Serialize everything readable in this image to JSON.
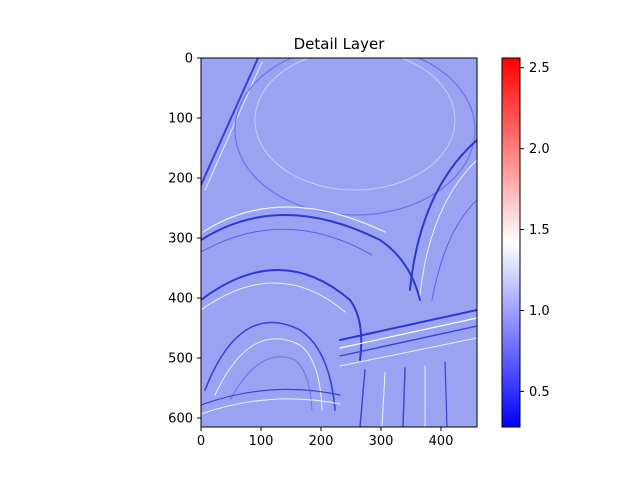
{
  "chart_data": {
    "type": "heatmap",
    "title": "Detail Layer",
    "xlabel": "",
    "ylabel": "",
    "x_ticks": [
      0,
      100,
      200,
      300,
      400
    ],
    "y_ticks": [
      0,
      100,
      200,
      300,
      400,
      500,
      600
    ],
    "xlim": [
      0,
      460
    ],
    "ylim": [
      615,
      0
    ],
    "grid": false,
    "colormap": "bwr",
    "colorbar": {
      "min": 0.28,
      "max": 2.56,
      "ticks": [
        0.5,
        1.0,
        1.5,
        2.0,
        2.5
      ],
      "tick_labels": [
        "0.5",
        "1.0",
        "1.5",
        "2.0",
        "2.5"
      ]
    },
    "image_description_values": {
      "background_level": 1.0
    }
  },
  "colors": {
    "cmap_low": "#0000ff",
    "cmap_mid": "#ffffff",
    "cmap_high": "#ff0000",
    "base_fill": "#9aa3f2"
  }
}
